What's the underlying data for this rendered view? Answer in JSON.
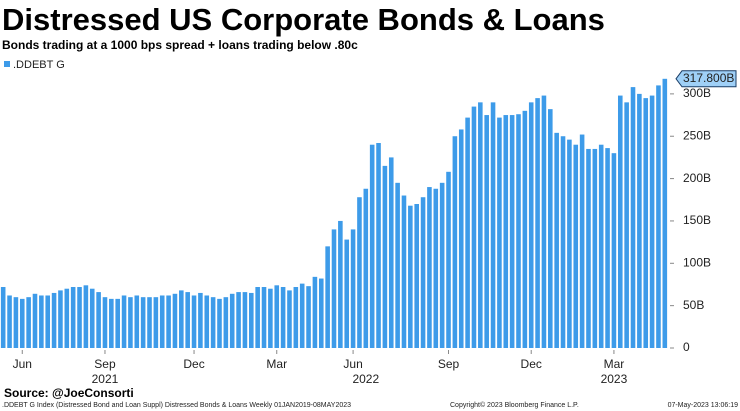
{
  "chart_data": {
    "type": "bar",
    "title": "Distressed US Corporate Bonds & Loans",
    "subtitle": "Bonds trading at a 1000 bps spread + loans trading below .80c",
    "series": [
      {
        "name": ".DDEBT G",
        "color": "#3d9be9",
        "values": [
          72,
          62,
          60,
          58,
          60,
          64,
          62,
          62,
          65,
          68,
          70,
          72,
          72,
          74,
          70,
          66,
          60,
          58,
          58,
          62,
          60,
          62,
          60,
          60,
          60,
          62,
          62,
          64,
          68,
          66,
          62,
          65,
          62,
          60,
          58,
          60,
          64,
          66,
          66,
          65,
          72,
          72,
          70,
          74,
          72,
          68,
          72,
          76,
          73,
          84,
          82,
          120,
          140,
          150,
          128,
          140,
          178,
          188,
          240,
          242,
          215,
          225,
          195,
          180,
          168,
          170,
          178,
          190,
          188,
          195,
          208,
          250,
          258,
          272,
          285,
          290,
          275,
          290,
          272,
          275,
          275,
          276,
          280,
          290,
          295,
          298,
          282,
          254,
          250,
          246,
          240,
          252,
          235,
          235,
          240,
          236,
          230,
          298,
          290,
          308,
          300,
          295,
          298,
          310,
          317.8
        ],
        "last_value_label": "317.800B"
      }
    ],
    "categories": [
      null,
      null,
      null,
      "Jun",
      null,
      null,
      null,
      null,
      null,
      null,
      null,
      null,
      null,
      null,
      null,
      null,
      "Sep",
      null,
      null,
      null,
      null,
      null,
      null,
      null,
      null,
      null,
      null,
      null,
      null,
      null,
      "Dec",
      null,
      null,
      null,
      null,
      null,
      null,
      null,
      null,
      null,
      null,
      null,
      null,
      "Mar",
      null,
      null,
      null,
      null,
      null,
      null,
      null,
      null,
      null,
      null,
      null,
      "Jun",
      null,
      null,
      null,
      null,
      null,
      null,
      null,
      null,
      null,
      null,
      null,
      null,
      null,
      null,
      "Sep",
      null,
      null,
      null,
      null,
      null,
      null,
      null,
      null,
      null,
      null,
      null,
      null,
      "Dec",
      null,
      null,
      null,
      null,
      null,
      null,
      null,
      null,
      null,
      null,
      null,
      null,
      "Mar",
      null,
      null,
      null,
      null,
      null,
      null,
      null,
      null
    ],
    "category_years": [
      null,
      null,
      null,
      null,
      null,
      null,
      null,
      null,
      null,
      null,
      null,
      null,
      null,
      null,
      null,
      null,
      "2021",
      null,
      null,
      null,
      null,
      null,
      null,
      null,
      null,
      null,
      null,
      null,
      null,
      null,
      null,
      null,
      null,
      null,
      null,
      null,
      null,
      null,
      null,
      null,
      null,
      null,
      null,
      null,
      null,
      null,
      null,
      null,
      null,
      null,
      null,
      null,
      null,
      null,
      null,
      null,
      null,
      "2022",
      null,
      null,
      null,
      null,
      null,
      null,
      null,
      null,
      null,
      null,
      null,
      null,
      null,
      null,
      null,
      null,
      null,
      null,
      null,
      null,
      null,
      null,
      null,
      null,
      null,
      null,
      null,
      null,
      null,
      null,
      null,
      null,
      null,
      null,
      null,
      null,
      null,
      null,
      "2023",
      null,
      null,
      null,
      null,
      null,
      null,
      null,
      null
    ],
    "ylim": [
      0,
      340
    ],
    "yticks": [
      0,
      {
        "value": 50,
        "label": "50B"
      },
      {
        "value": 100,
        "label": "100B"
      },
      {
        "value": 150,
        "label": "150B"
      },
      {
        "value": 200,
        "label": "200B"
      },
      {
        "value": 250,
        "label": "250B"
      },
      {
        "value": 300,
        "label": "300B"
      }
    ],
    "grid": false,
    "source": "Source: @JoeConsorti",
    "footer_left": ".DDEBT G Index (Distressed Bond and Loan Suppl) Distressed Bonds & Loans  Weekly 01JAN2019-08MAY2023",
    "footer_copyright": "Copyright© 2023 Bloomberg Finance L.P.",
    "footer_date": "07-May-2023 13:06:19"
  }
}
